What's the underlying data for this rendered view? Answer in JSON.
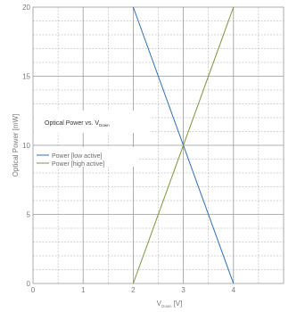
{
  "chart_data": {
    "type": "line",
    "title": "Optical Power vs. V",
    "title_subscript": "Down",
    "xlabel": "V",
    "xlabel_subscript": "Down",
    "xlabel_unit": "[V]",
    "ylabel": "Optical Power [mW]",
    "xlim": [
      0,
      5
    ],
    "ylim": [
      0,
      20
    ],
    "x_ticks": [
      "0",
      "1",
      "2",
      "3",
      "4"
    ],
    "y_ticks": [
      "0",
      "5",
      "10",
      "15",
      "20"
    ],
    "grid": true,
    "legend_position": "middle-left",
    "series": [
      {
        "name": "Power [low active]",
        "color": "#2f6fb5",
        "x": [
          2,
          4
        ],
        "y": [
          20,
          0
        ]
      },
      {
        "name": "Power [high active]",
        "color": "#7d9440",
        "x": [
          2,
          4
        ],
        "y": [
          0,
          20
        ]
      }
    ]
  }
}
